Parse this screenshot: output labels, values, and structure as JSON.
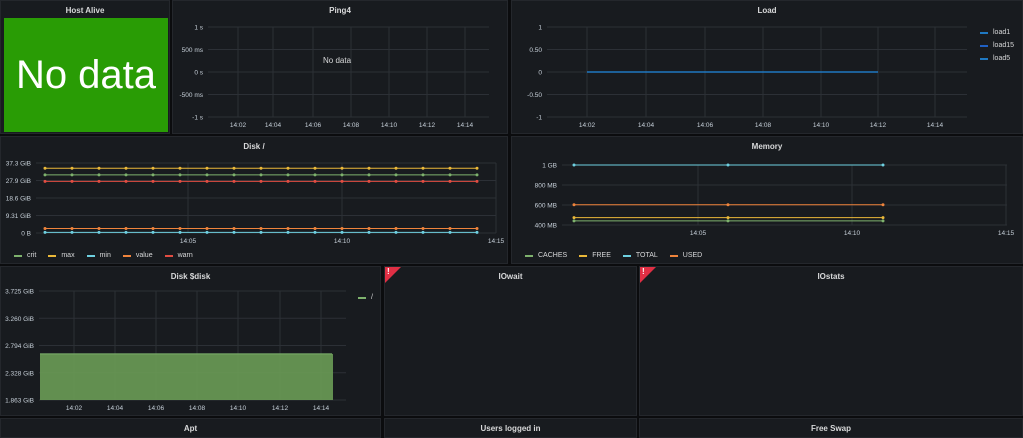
{
  "panels": {
    "host_alive": {
      "title": "Host Alive",
      "value": "No data",
      "color": "#299c05"
    },
    "ping4": {
      "title": "Ping4",
      "nodata": "No data"
    },
    "load": {
      "title": "Load",
      "legend": [
        {
          "name": "load1",
          "color": "#1f78c1"
        },
        {
          "name": "load15",
          "color": "#1f60c4"
        },
        {
          "name": "load5",
          "color": "#1f78c1"
        }
      ]
    },
    "disk_root": {
      "title": "Disk /",
      "legend": [
        {
          "name": "crit",
          "color": "#7eb26d"
        },
        {
          "name": "max",
          "color": "#eab839"
        },
        {
          "name": "min",
          "color": "#6ed0e0"
        },
        {
          "name": "value",
          "color": "#ef843c"
        },
        {
          "name": "warn",
          "color": "#e24d42"
        }
      ]
    },
    "memory": {
      "title": "Memory",
      "legend": [
        {
          "name": "CACHES",
          "color": "#7eb26d"
        },
        {
          "name": "FREE",
          "color": "#eab839"
        },
        {
          "name": "TOTAL",
          "color": "#6ed0e0"
        },
        {
          "name": "USED",
          "color": "#ef843c"
        }
      ]
    },
    "disk_var": {
      "title": "Disk $disk",
      "legend": [
        {
          "name": "/",
          "color": "#7eb26d"
        }
      ]
    },
    "iowait": {
      "title": "IOwait",
      "alert": "!"
    },
    "iostats": {
      "title": "IOstats",
      "alert": "!"
    },
    "apt": {
      "title": "Apt"
    },
    "users": {
      "title": "Users logged in"
    },
    "swap": {
      "title": "Free Swap"
    }
  },
  "chart_data": [
    {
      "id": "ping4",
      "type": "line",
      "yticks": [
        "1 s",
        "500 ms",
        "0 s",
        "-500 ms",
        "-1 s"
      ],
      "xticks": [
        "14:02",
        "14:04",
        "14:06",
        "14:08",
        "14:10",
        "14:12",
        "14:14"
      ],
      "series": []
    },
    {
      "id": "load",
      "type": "line",
      "yticks": [
        "1",
        "0.50",
        "0",
        "-0.50",
        "-1"
      ],
      "xticks": [
        "14:02",
        "14:04",
        "14:06",
        "14:08",
        "14:10",
        "14:12",
        "14:14"
      ],
      "ylim": [
        -1,
        1
      ],
      "series": [
        {
          "name": "load1",
          "color": "#1f78c1",
          "x": [
            "14:02",
            "14:12"
          ],
          "values": [
            0,
            0
          ]
        }
      ]
    },
    {
      "id": "disk_root",
      "type": "line",
      "yticks": [
        "37.3 GiB",
        "27.9 GiB",
        "18.6 GiB",
        "9.31 GiB",
        "0 B"
      ],
      "xticks": [
        "14:05",
        "14:10",
        "14:15"
      ],
      "ylim": [
        0,
        37.3
      ],
      "series": [
        {
          "name": "max",
          "color": "#eab839",
          "values": [
            34.5
          ]
        },
        {
          "name": "crit",
          "color": "#7eb26d",
          "values": [
            31.0
          ]
        },
        {
          "name": "warn",
          "color": "#e24d42",
          "values": [
            27.5
          ]
        },
        {
          "name": "value",
          "color": "#ef843c",
          "values": [
            2.4
          ]
        },
        {
          "name": "min",
          "color": "#6ed0e0",
          "values": [
            0.3
          ]
        }
      ]
    },
    {
      "id": "memory",
      "type": "line",
      "yticks": [
        "1 GB",
        "800 MB",
        "600 MB",
        "400 MB"
      ],
      "xticks": [
        "14:05",
        "14:10",
        "14:15"
      ],
      "ylim": [
        350,
        1000
      ],
      "series": [
        {
          "name": "TOTAL",
          "color": "#6ed0e0",
          "values": [
            1000
          ]
        },
        {
          "name": "USED",
          "color": "#ef843c",
          "values": [
            570
          ]
        },
        {
          "name": "FREE",
          "color": "#eab839",
          "values": [
            430
          ]
        },
        {
          "name": "CACHES",
          "color": "#7eb26d",
          "values": [
            395
          ]
        }
      ]
    },
    {
      "id": "disk_var",
      "type": "area",
      "yticks": [
        "3.725 GiB",
        "3.260 GiB",
        "2.794 GiB",
        "2.328 GiB",
        "1.863 GiB"
      ],
      "xticks": [
        "14:02",
        "14:04",
        "14:06",
        "14:08",
        "14:10",
        "14:12",
        "14:14"
      ],
      "ylim": [
        1.863,
        3.725
      ],
      "series": [
        {
          "name": "/",
          "color": "#7eb26d",
          "values": [
            2.65
          ]
        }
      ]
    }
  ]
}
